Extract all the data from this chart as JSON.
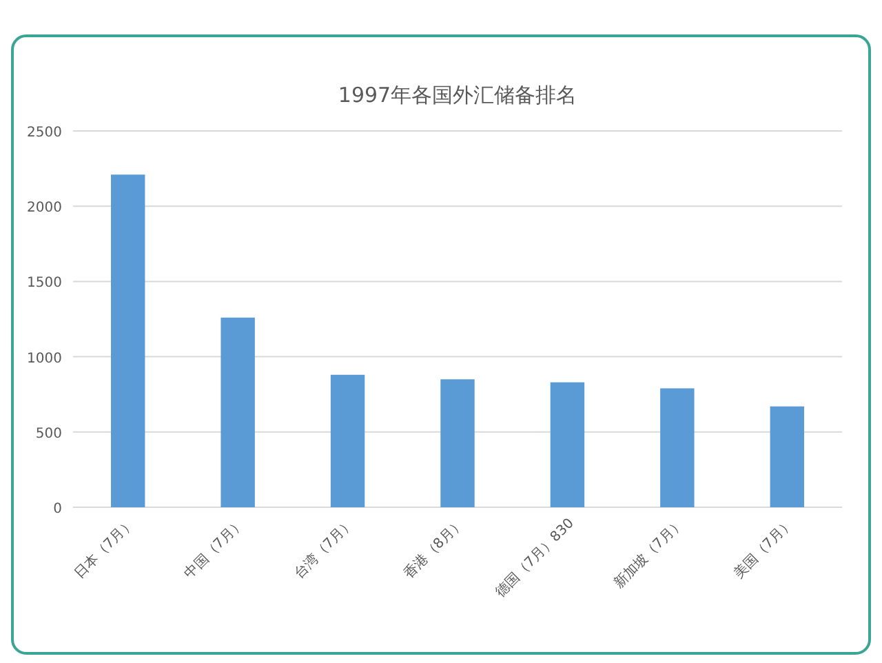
{
  "chart_data": {
    "type": "bar",
    "title": "1997年各国外汇储备排名",
    "categories": [
      "日本（7月）",
      "中国（7月）",
      "台湾（7月）",
      "香港（8月）",
      "德国（7月）830",
      "新加坡（7月）",
      "美国（7月）"
    ],
    "values": [
      2210,
      1260,
      880,
      850,
      830,
      790,
      670
    ],
    "color": "#5b9bd5",
    "ylim": [
      0,
      2500
    ],
    "yticks": [
      0,
      500,
      1000,
      1500,
      2000,
      2500
    ],
    "grid": "y",
    "legend": false
  }
}
